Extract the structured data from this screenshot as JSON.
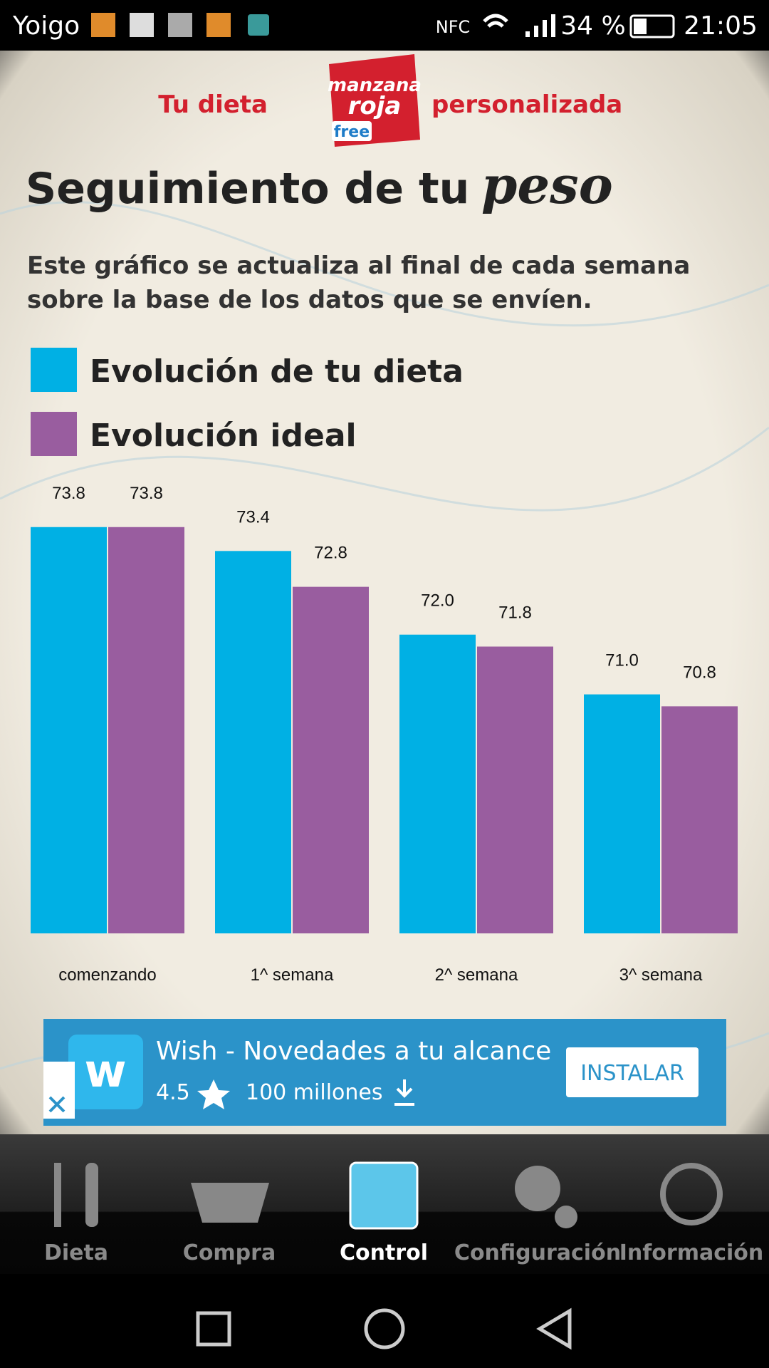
{
  "status_bar": {
    "carrier": "Yoigo",
    "nfc": "NFC",
    "battery": "34 %",
    "time": "21:05"
  },
  "header": {
    "left": "Tu dieta",
    "logo_top": "manzana",
    "logo_main": "roja",
    "logo_badge": "free",
    "right": "personalizada"
  },
  "title": {
    "text": "Seguimiento de tu",
    "emphasis": "peso"
  },
  "subtitle": [
    "Este gráfico se actualiza al final de cada semana",
    "sobre la base de los datos que se envíen."
  ],
  "chart_data": {
    "type": "bar",
    "categories": [
      "comenzando",
      "1^ semana",
      "2^ semana",
      "3^ semana"
    ],
    "series": [
      {
        "name": "Evolución de tu dieta",
        "color": "#00b0e4",
        "values": [
          73.8,
          73.4,
          72.0,
          71.0
        ],
        "value_labels": [
          "73.8",
          "73.4",
          "72.0",
          "71.0"
        ]
      },
      {
        "name": "Evolución ideal",
        "color": "#995d9f",
        "values": [
          73.8,
          72.8,
          71.8,
          70.8
        ],
        "value_labels": [
          "73.8",
          "72.8",
          "71.8",
          "70.8"
        ]
      }
    ],
    "ylim": [
      67,
      74
    ]
  },
  "ad": {
    "title": "Wish - Novedades a tu alcance",
    "rating": "4.5",
    "installs": "100 millones",
    "button": "INSTALAR"
  },
  "nav": [
    "Dieta",
    "Compra",
    "Control",
    "Configuración",
    "Información"
  ]
}
